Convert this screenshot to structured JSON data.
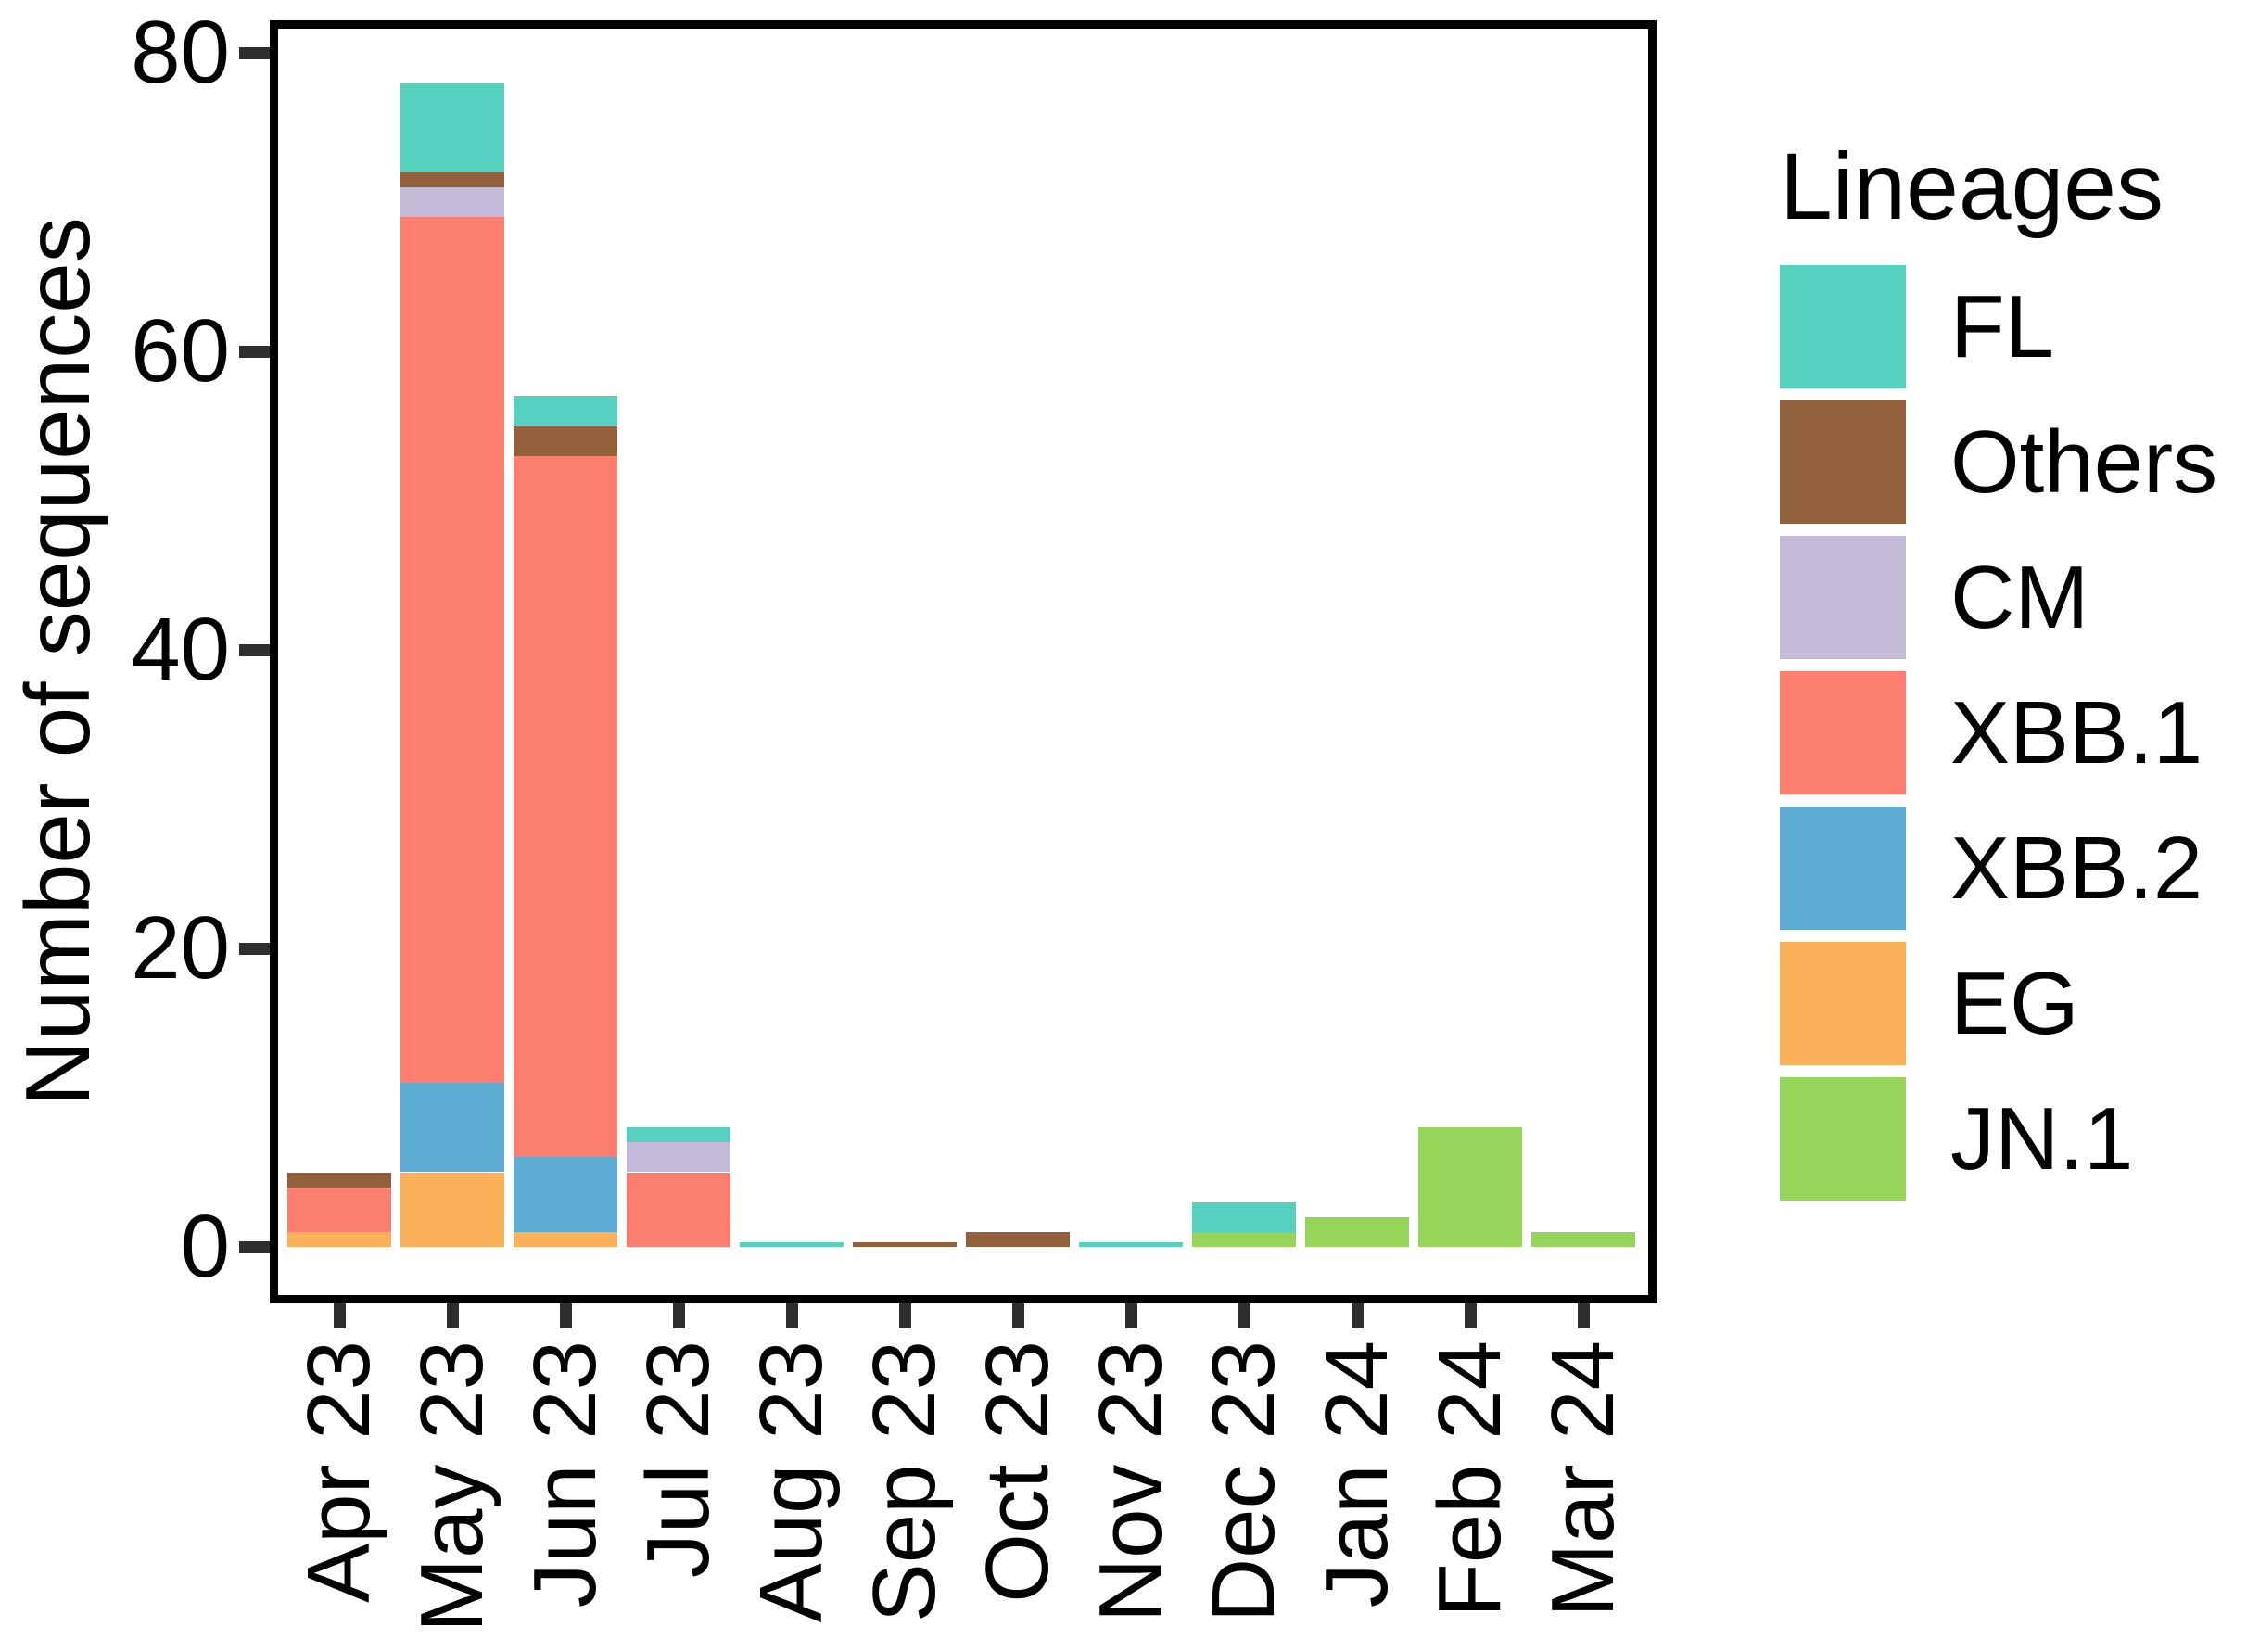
{
  "figure": {
    "y_axis": {
      "title": "Number of sequences",
      "tick_labels": [
        "0",
        "20",
        "40",
        "60",
        "80"
      ]
    },
    "x_axis": {
      "tick_labels": [
        "Apr 23",
        "May 23",
        "Jun 23",
        "Jul 23",
        "Aug 23",
        "Sep 23",
        "Oct 23",
        "Nov 23",
        "Dec 23",
        "Jan 24",
        "Feb 24",
        "Mar 24"
      ]
    },
    "legend": {
      "title": "Lineages",
      "entries_top_to_bottom": [
        "FL",
        "Others",
        "CM",
        "XBB.1",
        "XBB.2",
        "EG",
        "JN.1"
      ]
    }
  },
  "chart_data": {
    "type": "bar",
    "stacked": true,
    "title": "",
    "xlabel": "",
    "ylabel": "Number of sequences",
    "categories": [
      "Apr 23",
      "May 23",
      "Jun 23",
      "Jul 23",
      "Aug 23",
      "Sep 23",
      "Oct 23",
      "Nov 23",
      "Dec 23",
      "Jan 24",
      "Feb 24",
      "Mar 24"
    ],
    "series_bottom_to_top": [
      {
        "name": "JN.1",
        "color": "#97D45A",
        "values": [
          0,
          0,
          0,
          0,
          0,
          0,
          0,
          0,
          1,
          2,
          8,
          1
        ]
      },
      {
        "name": "EG",
        "color": "#FBB05A",
        "values": [
          1,
          5,
          1,
          0,
          0,
          0,
          0,
          0,
          0,
          0,
          0,
          0
        ]
      },
      {
        "name": "XBB.2",
        "color": "#5EABD3",
        "values": [
          0,
          6,
          5,
          0,
          0,
          0,
          0,
          0,
          0,
          0,
          0,
          0
        ]
      },
      {
        "name": "XBB.1",
        "color": "#FB7E6E",
        "values": [
          3,
          58,
          47,
          5,
          0,
          0,
          0,
          0,
          0,
          0,
          0,
          0
        ]
      },
      {
        "name": "CM",
        "color": "#C3BAD9",
        "values": [
          0,
          2,
          0,
          2,
          0,
          0,
          0,
          0,
          0,
          0,
          0,
          0
        ]
      },
      {
        "name": "Others",
        "color": "#92613C",
        "values": [
          1,
          1,
          2,
          0,
          0,
          0.3,
          1,
          0,
          0,
          0,
          0,
          0
        ]
      },
      {
        "name": "FL",
        "color": "#56D1C0",
        "values": [
          0,
          6,
          2,
          1,
          0.3,
          0,
          0,
          0.3,
          2,
          0,
          0,
          0
        ]
      }
    ],
    "bar_totals": [
      5,
      78,
      57,
      8,
      0.3,
      0.3,
      1,
      0.3,
      3,
      2,
      8,
      1
    ],
    "ylim": [
      0,
      80
    ],
    "yticks": [
      0,
      20,
      40,
      60,
      80
    ],
    "grid": false,
    "legend_position": "right",
    "note": "Values of 0.3 are thin colored slivers drawn at the baseline in Aug 23 (FL), Sep 23 (Others) and Nov 23 (FL)."
  }
}
